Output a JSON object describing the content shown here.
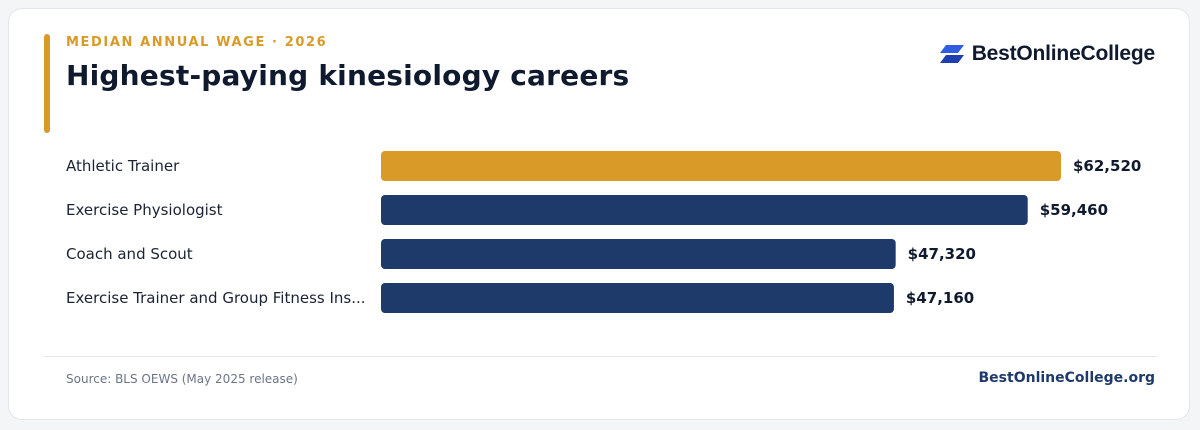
{
  "header": {
    "eyebrow": "MEDIAN ANNUAL WAGE · 2026",
    "title": "Highest-paying kinesiology careers"
  },
  "brand": {
    "name": "BestOnlineCollege",
    "icon": "stacked-parallelogram-logo-icon"
  },
  "chart_data": {
    "type": "bar",
    "orientation": "horizontal",
    "categories": [
      "Athletic Trainer",
      "Exercise Physiologist",
      "Coach and Scout",
      "Exercise Trainer and Group Fitness Ins..."
    ],
    "values": [
      62520,
      59460,
      47320,
      47160
    ],
    "value_labels": [
      "$62,520",
      "$59,460",
      "$47,320",
      "$47,160"
    ],
    "highlight_index": 0,
    "colors": {
      "highlight": "#d99a27",
      "default": "#1e3a6b"
    },
    "xlim": [
      0,
      62520
    ],
    "grid": false,
    "legend": "none"
  },
  "footer": {
    "source": "Source: BLS OEWS (May 2025 release)",
    "site": "BestOnlineCollege.org"
  }
}
